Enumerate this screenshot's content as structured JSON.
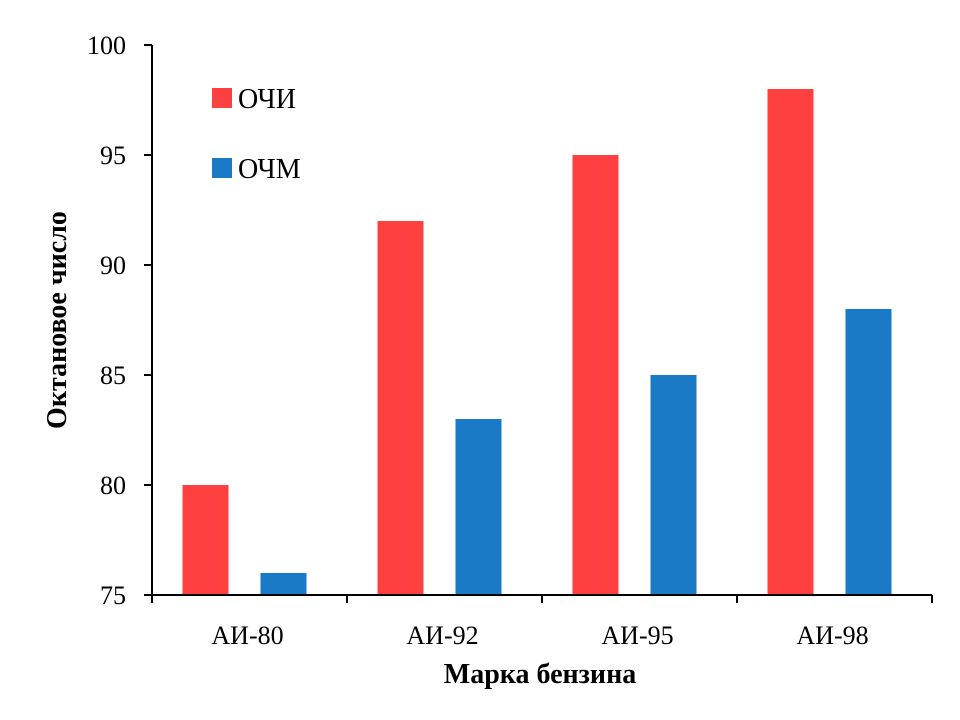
{
  "chart_data": {
    "type": "bar",
    "title": "",
    "xlabel": "Марка бензина",
    "ylabel": "Октановое число",
    "categories": [
      "АИ-80",
      "АИ-92",
      "АИ-95",
      "АИ-98"
    ],
    "series": [
      {
        "name": "ОЧИ",
        "color": "#ff4040",
        "values": [
          80,
          92,
          95,
          98
        ]
      },
      {
        "name": "ОЧМ",
        "color": "#1a7ac6",
        "values": [
          76,
          83,
          85,
          88
        ]
      }
    ],
    "ylim": [
      75,
      100
    ],
    "yticks": [
      75,
      80,
      85,
      90,
      95,
      100
    ],
    "grid": false,
    "legend_position": "top-left"
  }
}
